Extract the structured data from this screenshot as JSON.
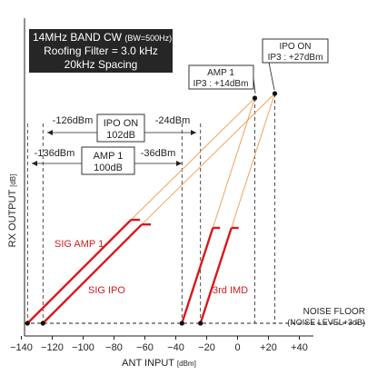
{
  "chart_data": {
    "type": "line",
    "title_box": {
      "line1": "14MHz BAND CW",
      "line1_small": "(BW=500Hz)",
      "line2": "Roofing Filter = 3.0 kHz",
      "line3": "20kHz Spacing"
    },
    "xlabel": "ANT INPUT",
    "xlabel_unit": "[dBm]",
    "ylabel": "RX OUTPUT",
    "ylabel_unit": "[dB]",
    "x_ticks": [
      -140,
      -120,
      -100,
      -80,
      -60,
      -40,
      -20,
      0,
      20,
      40
    ],
    "x_tick_labels": [
      "−140",
      "−120",
      "−100",
      "−80",
      "−60",
      "−40",
      "−20",
      "0",
      "+20",
      "+40"
    ],
    "xlim": [
      -143,
      43
    ],
    "series": [
      {
        "name": "SIG AMP 1",
        "color": "#d7191c",
        "x": [
          -136,
          -69
        ],
        "slope": 1
      },
      {
        "name": "SIG IPO",
        "color": "#d7191c",
        "x": [
          -126,
          -62
        ],
        "slope": 1
      },
      {
        "name": "3rd IMD",
        "color": "#d7191c",
        "x": [
          -36,
          -24
        ],
        "slope": 3
      }
    ],
    "extrapolations": [
      {
        "color": "#f0a35a",
        "from": "SIG AMP 1",
        "to": "AMP 1 IP3"
      },
      {
        "color": "#f0a35a",
        "from": "SIG IPO",
        "to": "IPO ON IP3"
      },
      {
        "color": "#f0a35a",
        "from": "3rd IMD AMP 1",
        "to": "AMP 1 IP3"
      },
      {
        "color": "#f0a35a",
        "from": "3rd IMD IPO",
        "to": "IPO ON IP3"
      }
    ],
    "intercepts": [
      {
        "name": "AMP 1",
        "value": "IP3 : +14dBm",
        "x": 14
      },
      {
        "name": "IPO ON",
        "value": "IP3 : +27dBm",
        "x": 27
      }
    ],
    "dynamic_range": [
      {
        "name": "IPO ON",
        "value": "102dB",
        "from_label": "-126dBm",
        "to_label": "-24dBm",
        "from": -126,
        "to": -24
      },
      {
        "name": "AMP 1",
        "value": "100dB",
        "from_label": "-136dBm",
        "to_label": "-36dBm",
        "from": -136,
        "to": -36
      }
    ],
    "noise_floor": {
      "label": "NOISE FLOOR",
      "sub": "(NOISE LEVEL+3dB)"
    },
    "series_labels": {
      "sig_amp1": "SIG AMP 1",
      "sig_ipo": "SIG IPO",
      "imd": "3rd IMD"
    }
  }
}
